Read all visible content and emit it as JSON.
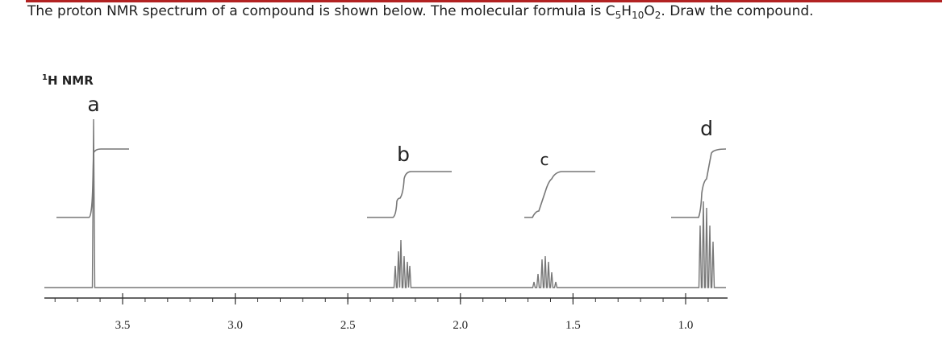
{
  "question": {
    "text_start": "The proton NMR spectrum of a compound is shown below.  The molecular formula is ",
    "formula": [
      {
        "element": "C",
        "count": "5"
      },
      {
        "element": "H",
        "count": "10"
      },
      {
        "element": "O",
        "count": "2"
      }
    ],
    "text_end": ".  Draw the compound."
  },
  "spectrum": {
    "nucleus_mass": "1",
    "label": "H NMR",
    "peak_labels": [
      "a",
      "b",
      "c",
      "d"
    ],
    "axis_ticks": [
      "3.5",
      "3.0",
      "2.5",
      "2.0",
      "1.5",
      "1.0"
    ]
  }
}
